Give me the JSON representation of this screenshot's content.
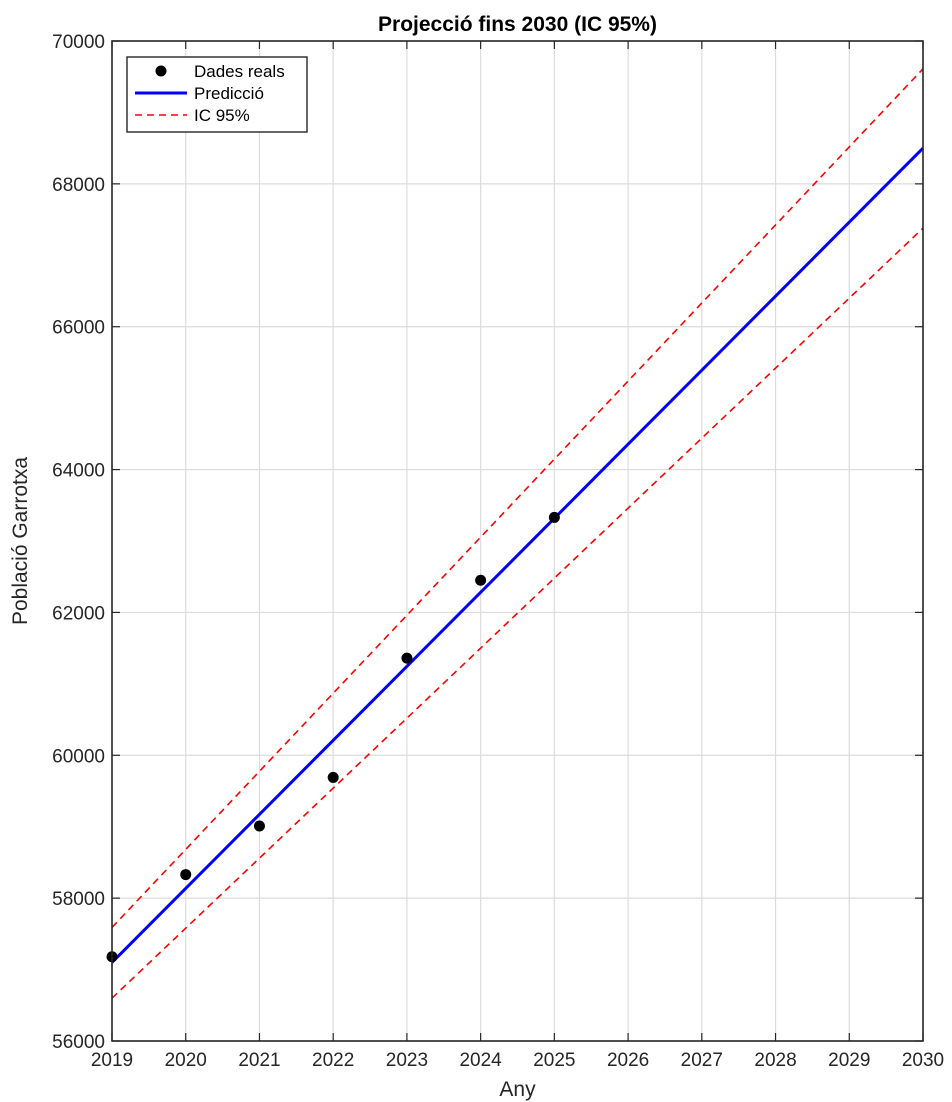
{
  "chart_data": {
    "type": "line",
    "title": "Projecció fins 2030 (IC 95%)",
    "xlabel": "Any",
    "ylabel": "Població Garrotxa",
    "xlim": [
      2019,
      2030
    ],
    "ylim": [
      56000,
      70000
    ],
    "xticks": [
      "2019",
      "2020",
      "2021",
      "2022",
      "2023",
      "2024",
      "2025",
      "2026",
      "2027",
      "2028",
      "2029",
      "2030"
    ],
    "yticks": [
      "56000",
      "58000",
      "60000",
      "62000",
      "64000",
      "66000",
      "68000",
      "70000"
    ],
    "grid": true,
    "legend_position": "top-left",
    "series": [
      {
        "name": "Dades reals",
        "kind": "scatter",
        "color": "#000000",
        "x": [
          2019,
          2020,
          2021,
          2022,
          2023,
          2024,
          2025
        ],
        "y": [
          57180,
          58330,
          59010,
          59690,
          61360,
          62450,
          63330
        ]
      },
      {
        "name": "Predicció",
        "kind": "line",
        "color": "#0000ff",
        "x": [
          2019,
          2030
        ],
        "y": [
          57100,
          68500
        ]
      },
      {
        "name": "IC 95%",
        "kind": "dashed",
        "color": "#ff0000",
        "x": [
          2019,
          2030
        ],
        "y": [
          57590,
          69610
        ]
      },
      {
        "name": "",
        "kind": "dashed",
        "color": "#ff0000",
        "x": [
          2019,
          2030
        ],
        "y": [
          56600,
          67380
        ]
      }
    ]
  }
}
